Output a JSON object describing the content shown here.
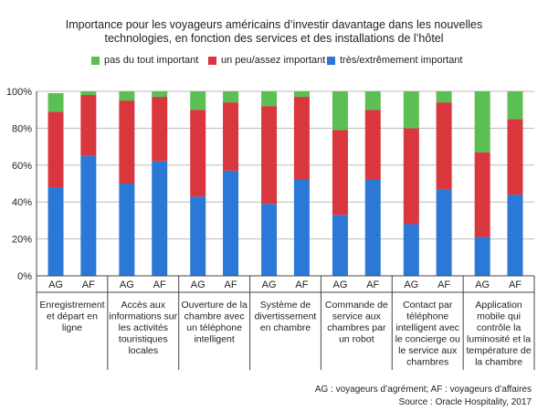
{
  "chart_data": {
    "type": "bar",
    "stacked": true,
    "title_lines": [
      "Importance pour les voyageurs américains d’investir davantage dans les nouvelles",
      "technologies,  en fonction  des services et des installations  de l’hôtel"
    ],
    "colors": {
      "green": "#5cbf54",
      "red": "#d9363e",
      "blue": "#2b78d6"
    },
    "legend": [
      {
        "name": "pas du tout important",
        "color": "#5cbf54"
      },
      {
        "name": "un peu/assez important",
        "color": "#d9363e"
      },
      {
        "name": "très/extrêmement  important",
        "color": "#2b78d6"
      }
    ],
    "y_ticks": [
      "0%",
      "20%",
      "40%",
      "60%",
      "80%",
      "100%"
    ],
    "ylim": [
      0,
      100
    ],
    "groups": [
      {
        "label": [
          "Enregistrement",
          "et départ en",
          "ligne"
        ],
        "bars": [
          {
            "sub": "AG",
            "blue": 48,
            "red": 41,
            "green": 10
          },
          {
            "sub": "AF",
            "blue": 65,
            "red": 33,
            "green": 2
          }
        ]
      },
      {
        "label": [
          "Accès aux",
          "informations sur",
          "les activités",
          "touristiques",
          "locales"
        ],
        "bars": [
          {
            "sub": "AG",
            "blue": 50,
            "red": 45,
            "green": 5
          },
          {
            "sub": "AF",
            "blue": 62,
            "red": 35,
            "green": 3
          }
        ]
      },
      {
        "label": [
          "Ouverture de la",
          "chambre avec",
          "un téléphone",
          "intelligent"
        ],
        "bars": [
          {
            "sub": "AG",
            "blue": 43,
            "red": 47,
            "green": 10
          },
          {
            "sub": "AF",
            "blue": 57,
            "red": 37,
            "green": 6
          }
        ]
      },
      {
        "label": [
          "Système de",
          "divertissement",
          "en chambre"
        ],
        "bars": [
          {
            "sub": "AG",
            "blue": 39,
            "red": 53,
            "green": 8
          },
          {
            "sub": "AF",
            "blue": 52,
            "red": 45,
            "green": 3
          }
        ]
      },
      {
        "label": [
          "Commande de",
          "service aux",
          "chambres par",
          "un robot"
        ],
        "bars": [
          {
            "sub": "AG",
            "blue": 33,
            "red": 46,
            "green": 21
          },
          {
            "sub": "AF",
            "blue": 52,
            "red": 38,
            "green": 10
          }
        ]
      },
      {
        "label": [
          "Contact par",
          "téléphone",
          "intelligent avec",
          "le concierge ou",
          "le service aux",
          "chambres"
        ],
        "bars": [
          {
            "sub": "AG",
            "blue": 28,
            "red": 52,
            "green": 20
          },
          {
            "sub": "AF",
            "blue": 47,
            "red": 47,
            "green": 6
          }
        ]
      },
      {
        "label": [
          "Application",
          "mobile qui",
          "contrôle la",
          "luminosité et la",
          "température de",
          "la chambre"
        ],
        "bars": [
          {
            "sub": "AG",
            "blue": 21,
            "red": 46,
            "green": 33
          },
          {
            "sub": "AF",
            "blue": 44,
            "red": 41,
            "green": 15
          }
        ]
      }
    ]
  },
  "footer": {
    "line1": "AG : voyageurs d’agrément; AF : voyageurs d’affaires",
    "line2": "Source : Oracle Hospitality, 2017"
  }
}
